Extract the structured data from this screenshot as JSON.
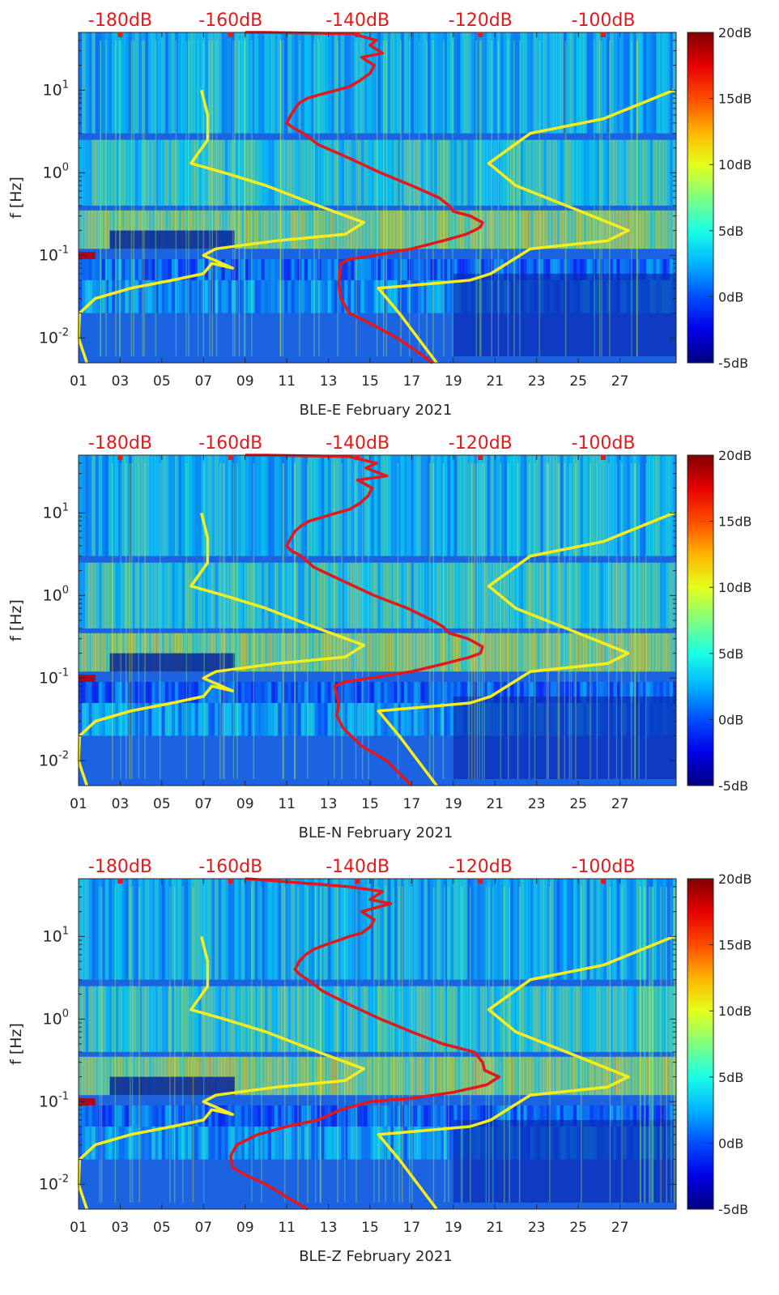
{
  "colors": {
    "red_curve": "#e8161a",
    "yellow_curve": "#f7ee1c",
    "axis_text": "#262626",
    "top_label": "#e31a1c",
    "background_noise": "#1b63e0"
  },
  "chart_data": [
    {
      "type": "heatmap",
      "xlabel": "BLE-E February 2021",
      "ylabel": "f [Hz]",
      "y_scale": "log",
      "ylim": [
        0.005,
        50
      ],
      "y_ticks": [
        "10^1",
        "10^0",
        "10^-1",
        "10^-2"
      ],
      "xlim": [
        1,
        29.7
      ],
      "x_ticks": [
        "01",
        "03",
        "05",
        "07",
        "09",
        "11",
        "13",
        "15",
        "17",
        "19",
        "21",
        "23",
        "25",
        "27"
      ],
      "top_axis_labels": [
        "-180dB",
        "-160dB",
        "-140dB",
        "-120dB",
        "-100dB"
      ],
      "colorbar": {
        "range": [
          -5,
          20
        ],
        "ticks": [
          "20dB",
          "15dB",
          "10dB",
          "5dB",
          "0dB",
          "-5dB"
        ]
      },
      "grid": false,
      "series": [
        {
          "color": "red",
          "x": [
            18.0,
            17.2,
            16.3,
            15.0,
            14.0,
            13.6,
            13.5,
            13.6,
            14.0,
            15.2,
            17.0,
            18.5,
            19.6,
            20.0,
            20.3,
            20.4,
            19.8,
            19.0,
            18.8,
            18.3,
            17.0,
            15.5,
            14.0,
            12.5,
            11.8,
            11.3,
            11.0,
            11.2,
            11.4,
            11.6,
            12.0,
            12.7,
            13.4,
            14.0,
            14.5,
            15.0,
            15.2,
            14.6,
            15.6,
            15.0,
            15.3,
            14.2,
            10.0,
            9.0
          ],
          "y": [
            0.005,
            0.007,
            0.01,
            0.015,
            0.02,
            0.03,
            0.045,
            0.08,
            0.09,
            0.1,
            0.12,
            0.15,
            0.18,
            0.2,
            0.22,
            0.25,
            0.3,
            0.34,
            0.4,
            0.5,
            0.7,
            1.0,
            1.5,
            2.2,
            3.0,
            3.5,
            4.0,
            5.0,
            6.0,
            7.0,
            8.0,
            9.0,
            10.0,
            11.0,
            13.0,
            16.0,
            20.0,
            25.0,
            28.0,
            35.0,
            40.0,
            48.0,
            50.0,
            50.0
          ]
        },
        {
          "color": "yellow",
          "x": [
            1.4,
            1.0,
            1.05,
            1.8,
            3.5,
            5.5,
            7.0,
            7.4,
            8.4,
            7.0,
            7.6,
            10.5,
            13.8,
            14.7,
            12.5,
            10.0,
            8.0,
            6.4,
            7.2,
            7.2,
            6.9
          ],
          "y": [
            0.005,
            0.01,
            0.02,
            0.03,
            0.04,
            0.05,
            0.06,
            0.08,
            0.07,
            0.1,
            0.12,
            0.15,
            0.18,
            0.25,
            0.4,
            0.7,
            1.0,
            1.3,
            2.5,
            5.0,
            10.0
          ]
        },
        {
          "color": "yellow",
          "x": [
            18.2,
            17.3,
            16.4,
            15.4,
            19.8,
            20.8,
            22.7,
            26.4,
            27.4,
            25.0,
            22.0,
            20.7,
            22.7,
            26.2,
            29.6
          ],
          "y": [
            0.005,
            0.01,
            0.02,
            0.04,
            0.05,
            0.06,
            0.12,
            0.15,
            0.2,
            0.35,
            0.7,
            1.3,
            3.0,
            4.5,
            10.0
          ]
        }
      ]
    },
    {
      "type": "heatmap",
      "xlabel": "BLE-N February 2021",
      "ylabel": "f [Hz]",
      "y_scale": "log",
      "ylim": [
        0.005,
        50
      ],
      "y_ticks": [
        "10^1",
        "10^0",
        "10^-1",
        "10^-2"
      ],
      "xlim": [
        1,
        29.7
      ],
      "x_ticks": [
        "01",
        "03",
        "05",
        "07",
        "09",
        "11",
        "13",
        "15",
        "17",
        "19",
        "21",
        "23",
        "25",
        "27"
      ],
      "top_axis_labels": [
        "-180dB",
        "-160dB",
        "-140dB",
        "-120dB",
        "-100dB"
      ],
      "colorbar": {
        "range": [
          -5,
          20
        ],
        "ticks": [
          "20dB",
          "15dB",
          "10dB",
          "5dB",
          "0dB",
          "-5dB"
        ]
      },
      "grid": false,
      "series": [
        {
          "color": "red",
          "x": [
            17.0,
            15.8,
            14.6,
            13.7,
            13.4,
            13.5,
            13.3,
            13.8,
            15.0,
            17.0,
            18.6,
            19.8,
            20.3,
            20.4,
            19.7,
            18.8,
            18.5,
            18.0,
            16.8,
            15.2,
            13.7,
            12.3,
            11.7,
            11.2,
            11.0,
            11.2,
            11.4,
            11.7,
            12.1,
            12.8,
            13.4,
            14.0,
            14.5,
            14.9,
            15.1,
            14.4,
            15.8,
            14.8,
            15.3,
            14.0,
            10.0,
            9.0
          ],
          "y": [
            0.005,
            0.01,
            0.015,
            0.025,
            0.035,
            0.05,
            0.08,
            0.09,
            0.1,
            0.12,
            0.15,
            0.18,
            0.2,
            0.24,
            0.3,
            0.35,
            0.42,
            0.5,
            0.7,
            1.0,
            1.5,
            2.2,
            3.0,
            3.5,
            4.0,
            5.0,
            6.0,
            7.0,
            8.0,
            9.0,
            10.0,
            11.0,
            13.0,
            16.0,
            20.0,
            25.0,
            28.0,
            35.0,
            40.0,
            48.0,
            50.0,
            50.0
          ]
        },
        {
          "color": "yellow",
          "x": [
            1.4,
            1.0,
            1.05,
            1.8,
            3.5,
            5.5,
            7.0,
            7.4,
            8.4,
            7.0,
            7.6,
            10.5,
            13.8,
            14.7,
            12.5,
            10.0,
            8.0,
            6.4,
            7.2,
            7.2,
            6.9
          ],
          "y": [
            0.005,
            0.01,
            0.02,
            0.03,
            0.04,
            0.05,
            0.06,
            0.08,
            0.07,
            0.1,
            0.12,
            0.15,
            0.18,
            0.25,
            0.4,
            0.7,
            1.0,
            1.3,
            2.5,
            5.0,
            10.0
          ]
        },
        {
          "color": "yellow",
          "x": [
            18.2,
            17.3,
            16.4,
            15.4,
            19.8,
            20.8,
            22.7,
            26.4,
            27.4,
            25.0,
            22.0,
            20.7,
            22.7,
            26.2,
            29.6
          ],
          "y": [
            0.005,
            0.01,
            0.02,
            0.04,
            0.05,
            0.06,
            0.12,
            0.15,
            0.2,
            0.35,
            0.7,
            1.3,
            3.0,
            4.5,
            10.0
          ]
        }
      ]
    },
    {
      "type": "heatmap",
      "xlabel": "BLE-Z February 2021",
      "ylabel": "f [Hz]",
      "y_scale": "log",
      "ylim": [
        0.005,
        50
      ],
      "y_ticks": [
        "10^1",
        "10^0",
        "10^-1",
        "10^-2"
      ],
      "xlim": [
        1,
        29.7
      ],
      "x_ticks": [
        "01",
        "03",
        "05",
        "07",
        "09",
        "11",
        "13",
        "15",
        "17",
        "19",
        "21",
        "23",
        "25",
        "27"
      ],
      "top_axis_labels": [
        "-180dB",
        "-160dB",
        "-140dB",
        "-120dB",
        "-100dB"
      ],
      "colorbar": {
        "range": [
          -5,
          20
        ],
        "ticks": [
          "20dB",
          "15dB",
          "10dB",
          "5dB",
          "0dB",
          "-5dB"
        ]
      },
      "grid": false,
      "series": [
        {
          "color": "red",
          "x": [
            12.0,
            11.0,
            10.0,
            9.0,
            8.4,
            8.3,
            8.6,
            9.6,
            11.0,
            12.5,
            13.6,
            15.0,
            17.0,
            19.0,
            20.6,
            21.2,
            20.5,
            20.4,
            20.0,
            18.5,
            17.0,
            15.5,
            14.0,
            12.7,
            12.0,
            11.6,
            11.4,
            11.6,
            11.9,
            12.3,
            12.9,
            13.5,
            14.0,
            14.6,
            15.0,
            15.2,
            14.6,
            16.0,
            15.0,
            15.6,
            14.0,
            10.0,
            9.0
          ],
          "y": [
            0.005,
            0.007,
            0.01,
            0.013,
            0.016,
            0.022,
            0.03,
            0.04,
            0.05,
            0.06,
            0.08,
            0.1,
            0.11,
            0.13,
            0.16,
            0.2,
            0.24,
            0.3,
            0.4,
            0.5,
            0.7,
            1.0,
            1.5,
            2.2,
            3.0,
            3.5,
            4.0,
            5.0,
            6.0,
            7.0,
            8.0,
            9.0,
            10.0,
            11.0,
            13.0,
            16.0,
            20.0,
            25.0,
            28.0,
            35.0,
            40.0,
            48.0,
            50.0
          ]
        },
        {
          "color": "yellow",
          "x": [
            1.4,
            1.0,
            1.05,
            1.8,
            3.5,
            5.5,
            7.0,
            7.4,
            8.4,
            7.0,
            7.6,
            10.5,
            13.8,
            14.7,
            12.5,
            10.0,
            8.0,
            6.4,
            7.2,
            7.2,
            6.9
          ],
          "y": [
            0.005,
            0.01,
            0.02,
            0.03,
            0.04,
            0.05,
            0.06,
            0.08,
            0.07,
            0.1,
            0.12,
            0.15,
            0.18,
            0.25,
            0.4,
            0.7,
            1.0,
            1.3,
            2.5,
            5.0,
            10.0
          ]
        },
        {
          "color": "yellow",
          "x": [
            18.2,
            17.3,
            16.4,
            15.4,
            19.8,
            20.8,
            22.7,
            26.4,
            27.4,
            25.0,
            22.0,
            20.7,
            22.7,
            26.2,
            29.6
          ],
          "y": [
            0.005,
            0.01,
            0.02,
            0.04,
            0.05,
            0.06,
            0.12,
            0.15,
            0.2,
            0.35,
            0.7,
            1.3,
            3.0,
            4.5,
            10.0
          ]
        }
      ]
    }
  ]
}
